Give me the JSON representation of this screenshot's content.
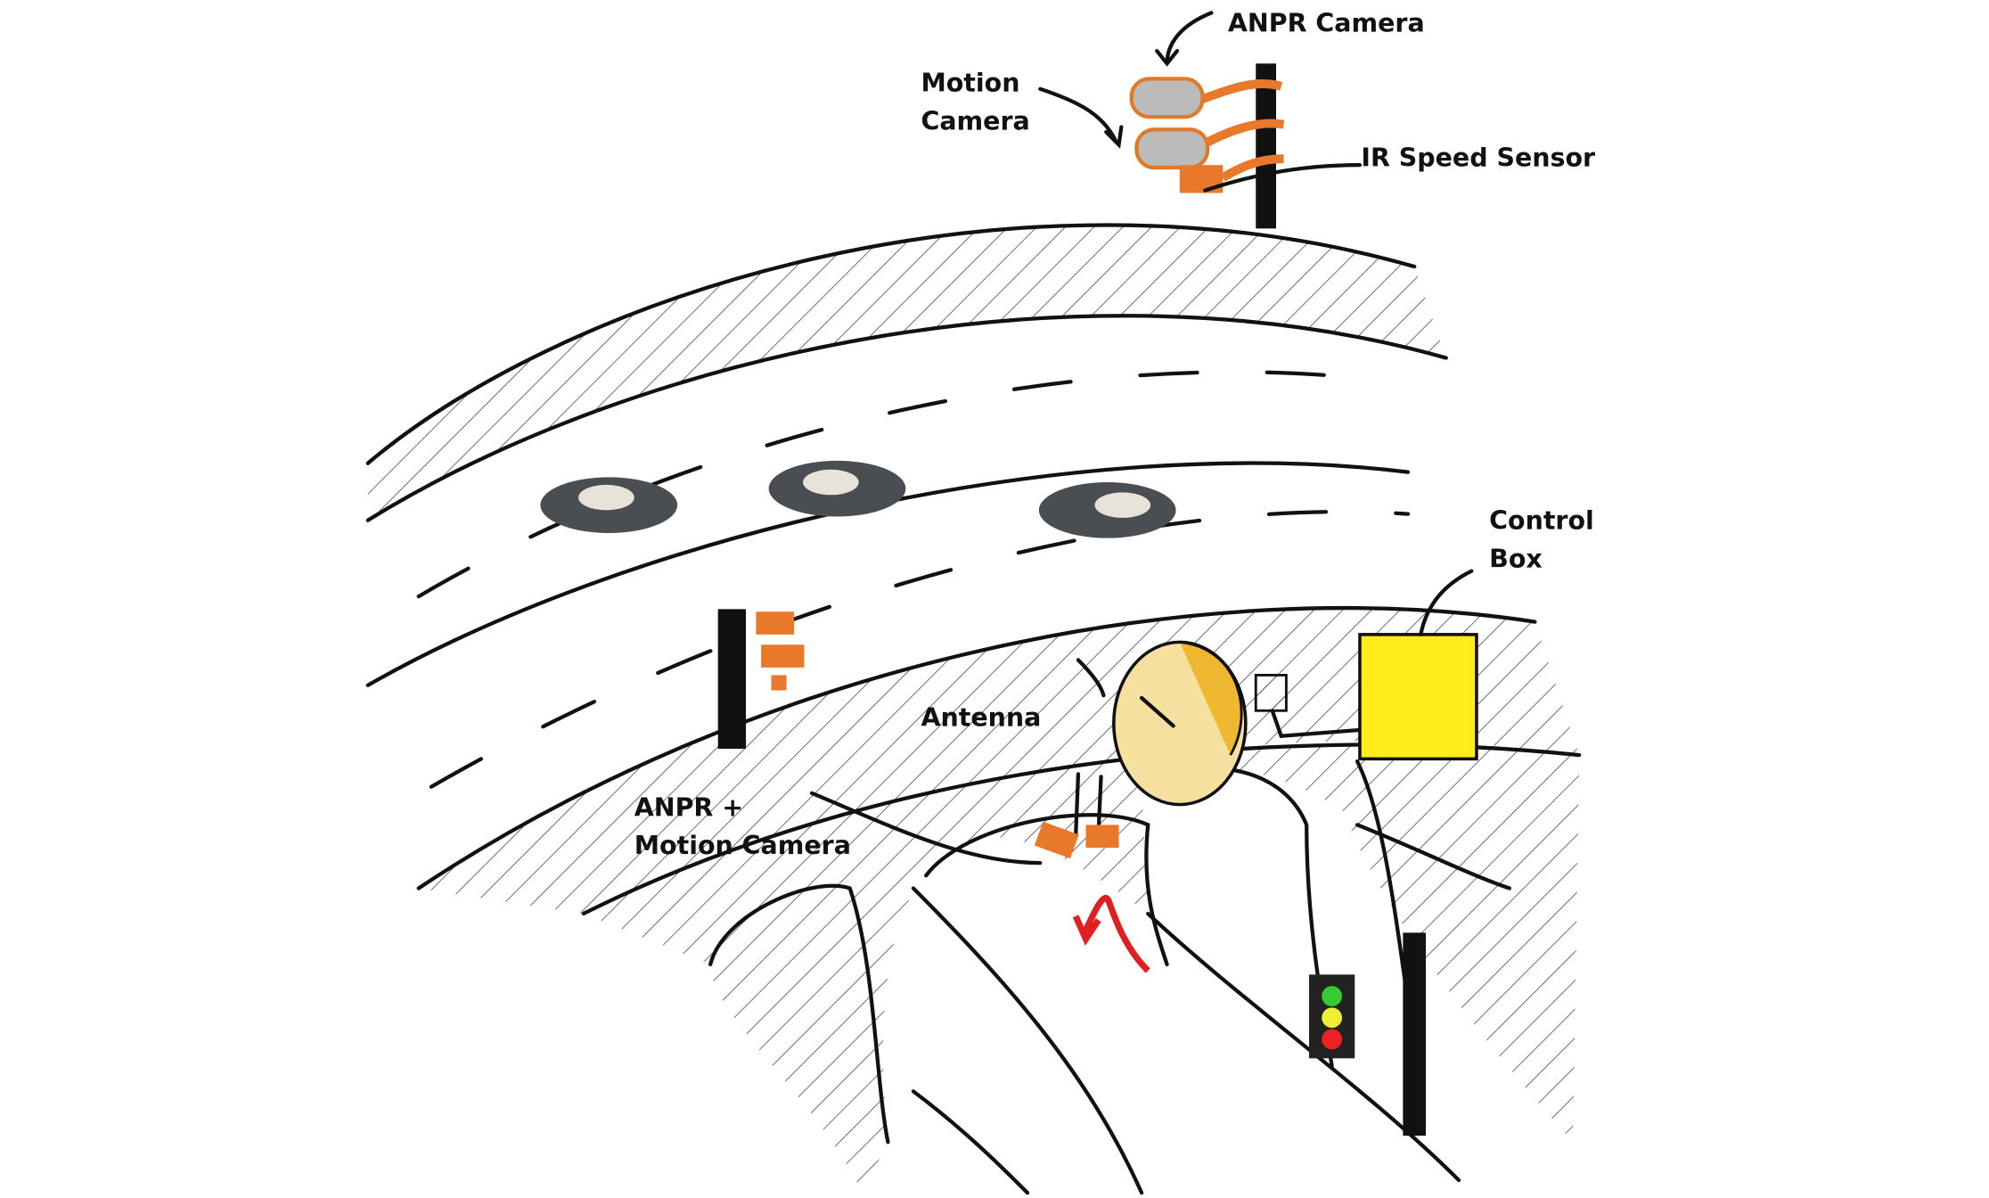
{
  "labels": [
    {
      "lines": [
        "ANPR Camera"
      ]
    },
    {
      "lines": [
        "Motion",
        "Camera"
      ]
    },
    {
      "lines": [
        "IR Speed Sensor"
      ]
    },
    {
      "lines": [
        "Control",
        "Box"
      ]
    },
    {
      "lines": [
        "Antenna"
      ]
    },
    {
      "lines": [
        "ANPR +",
        "Motion Camera"
      ]
    }
  ]
}
